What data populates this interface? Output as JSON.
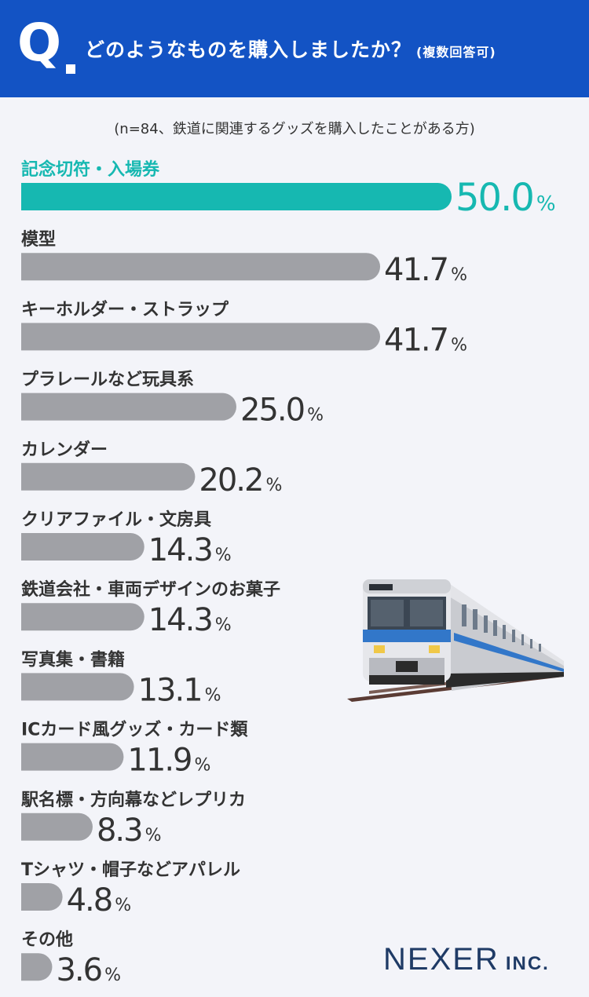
{
  "header": {
    "q_mark": "Q",
    "question": "どのようなものを購入しましたか？",
    "question_note": "(複数回答可)"
  },
  "note": "(n=84、鉄道に関連するグッズを購入したことがある方)",
  "colors": {
    "header_bg": "#1353c4",
    "highlight_bar": "#16b8b1",
    "bar": "#a0a1a6",
    "value_text": "#333333"
  },
  "chart_data": {
    "type": "bar",
    "orientation": "horizontal",
    "unit": "%",
    "categories": [
      "記念切符・入場券",
      "模型",
      "キーホルダー・ストラップ",
      "プラレールなど玩具系",
      "カレンダー",
      "クリアファイル・文房具",
      "鉄道会社・車両デザインのお菓子",
      "写真集・書籍",
      "ICカード風グッズ・カード類",
      "駅名標・方向幕などレプリカ",
      "Tシャツ・帽子などアパレル",
      "その他"
    ],
    "values": [
      50.0,
      41.7,
      41.7,
      25.0,
      20.2,
      14.3,
      14.3,
      13.1,
      11.9,
      8.3,
      4.8,
      3.6
    ],
    "value_labels": [
      "50.0",
      "41.7",
      "41.7",
      "25.0",
      "20.2",
      "14.3",
      "14.3",
      "13.1",
      "11.9",
      "8.3",
      "4.8",
      "3.6"
    ],
    "highlight_index": 0
  },
  "logo": {
    "main": "NEXER",
    "suffix": "INC."
  }
}
